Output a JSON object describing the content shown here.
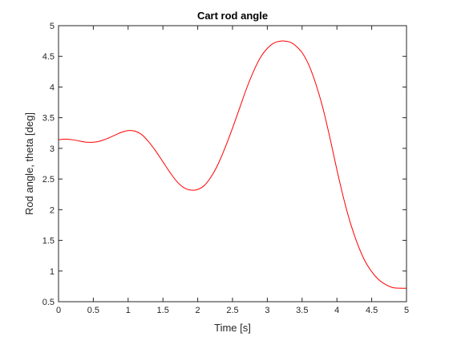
{
  "chart_data": {
    "type": "line",
    "title": "Cart rod angle",
    "xlabel": "Time [s]",
    "ylabel": "Rod angle, theta [deg]",
    "xlim": [
      0,
      5
    ],
    "ylim": [
      0.5,
      5
    ],
    "xticks": [
      0,
      0.5,
      1,
      1.5,
      2,
      2.5,
      3,
      3.5,
      4,
      4.5,
      5
    ],
    "yticks": [
      0.5,
      1,
      1.5,
      2,
      2.5,
      3,
      3.5,
      4,
      4.5,
      5
    ],
    "xtick_labels": [
      "0",
      "0.5",
      "1",
      "1.5",
      "2",
      "2.5",
      "3",
      "3.5",
      "4",
      "4.5",
      "5"
    ],
    "ytick_labels": [
      "0.5",
      "1",
      "1.5",
      "2",
      "2.5",
      "3",
      "3.5",
      "4",
      "4.5",
      "5"
    ],
    "grid": false,
    "box": true,
    "series": [
      {
        "color": "#ff0000",
        "x": [
          0,
          0.1,
          0.2,
          0.3,
          0.4,
          0.5,
          0.6,
          0.7,
          0.8,
          0.9,
          1.0,
          1.1,
          1.2,
          1.3,
          1.4,
          1.5,
          1.6,
          1.7,
          1.8,
          1.9,
          2.0,
          2.1,
          2.2,
          2.3,
          2.4,
          2.5,
          2.6,
          2.7,
          2.8,
          2.9,
          3.0,
          3.1,
          3.2,
          3.3,
          3.35,
          3.4,
          3.5,
          3.6,
          3.7,
          3.8,
          3.9,
          4.0,
          4.1,
          4.2,
          4.3,
          4.4,
          4.5,
          4.6,
          4.7,
          4.8,
          4.9,
          5.0
        ],
        "y": [
          3.14,
          3.15,
          3.14,
          3.12,
          3.1,
          3.1,
          3.12,
          3.16,
          3.21,
          3.26,
          3.29,
          3.28,
          3.22,
          3.1,
          2.95,
          2.78,
          2.61,
          2.46,
          2.36,
          2.32,
          2.33,
          2.4,
          2.55,
          2.76,
          3.03,
          3.33,
          3.65,
          3.97,
          4.25,
          4.48,
          4.63,
          4.72,
          4.75,
          4.74,
          4.72,
          4.68,
          4.56,
          4.35,
          4.04,
          3.65,
          3.17,
          2.65,
          2.17,
          1.76,
          1.43,
          1.17,
          0.99,
          0.86,
          0.78,
          0.73,
          0.72,
          0.72
        ]
      }
    ]
  }
}
